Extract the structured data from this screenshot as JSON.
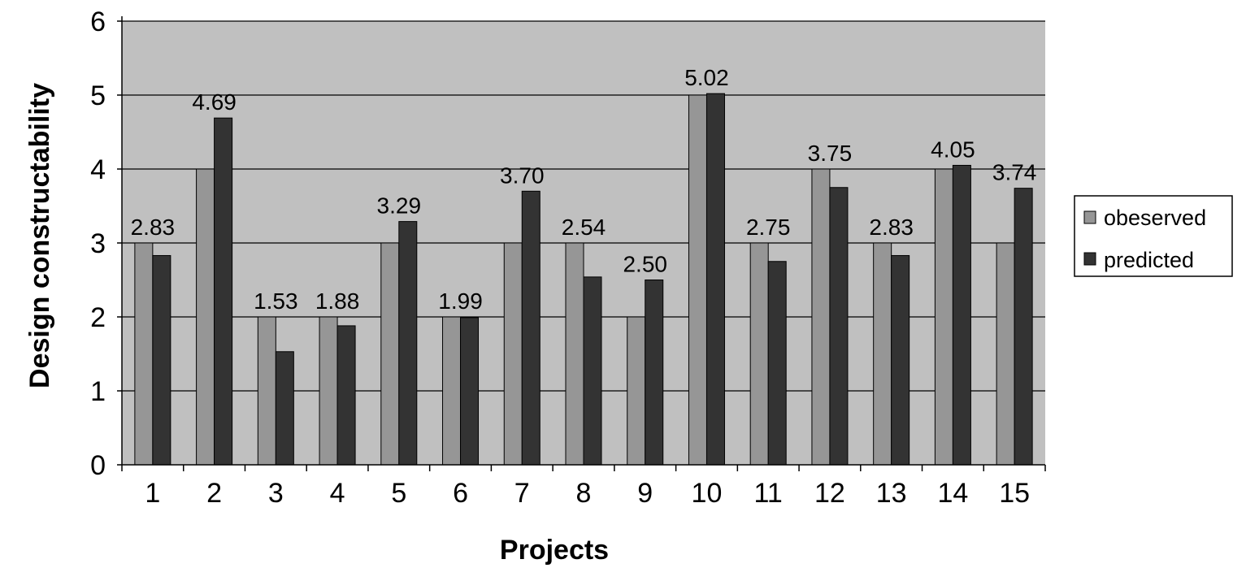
{
  "chart_data": {
    "type": "bar",
    "categories": [
      "1",
      "2",
      "3",
      "4",
      "5",
      "6",
      "7",
      "8",
      "9",
      "10",
      "11",
      "12",
      "13",
      "14",
      "15"
    ],
    "series": [
      {
        "name": "obeserved",
        "values": [
          3,
          4,
          2,
          2,
          3,
          2,
          3,
          3,
          2,
          5,
          3,
          4,
          3,
          4,
          3
        ]
      },
      {
        "name": "predicted",
        "values": [
          2.83,
          4.69,
          1.53,
          1.88,
          3.29,
          1.99,
          3.7,
          2.54,
          2.5,
          5.02,
          2.75,
          3.75,
          2.83,
          4.05,
          3.74
        ]
      }
    ],
    "data_labels": [
      "2.83",
      "4.69",
      "1.53",
      "1.88",
      "3.29",
      "1.99",
      "3.70",
      "2.54",
      "2.50",
      "5.02",
      "2.75",
      "3.75",
      "2.83",
      "4.05",
      "3.74"
    ],
    "title": "",
    "xlabel": "Projects",
    "ylabel": "Design constructability",
    "ylim": [
      0,
      6
    ],
    "yticks": [
      "0",
      "1",
      "2",
      "3",
      "4",
      "5",
      "6"
    ],
    "grid": true,
    "legend_position": "right",
    "colors": {
      "plot_background": "#c0c0c0",
      "obeserved": "#969696",
      "predicted": "#333333",
      "gridline": "#000000"
    }
  }
}
